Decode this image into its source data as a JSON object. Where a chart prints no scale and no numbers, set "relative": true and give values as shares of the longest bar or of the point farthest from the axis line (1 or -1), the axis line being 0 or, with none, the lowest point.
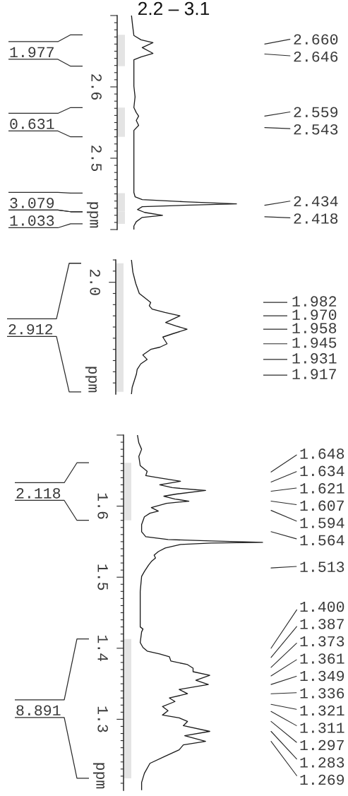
{
  "chart_data": [
    {
      "type": "line",
      "orientation": "horizontal",
      "relative": true,
      "title": "2.2 – 3.1",
      "ylabel": "ppm",
      "ylim": [
        2.4,
        2.7
      ],
      "yticks": [
        {
          "value": 2.4,
          "label": null
        },
        {
          "value": 2.41,
          "label": null
        },
        {
          "value": 2.42,
          "label": null
        },
        {
          "value": 2.43,
          "label": null
        },
        {
          "value": 2.44,
          "label": null
        },
        {
          "value": 2.45,
          "label": null
        },
        {
          "value": 2.46,
          "label": null
        },
        {
          "value": 2.47,
          "label": null
        },
        {
          "value": 2.48,
          "label": null
        },
        {
          "value": 2.49,
          "label": null
        },
        {
          "value": 2.5,
          "label": "2.5"
        },
        {
          "value": 2.51,
          "label": null
        },
        {
          "value": 2.52,
          "label": null
        },
        {
          "value": 2.53,
          "label": null
        },
        {
          "value": 2.54,
          "label": null
        },
        {
          "value": 2.55,
          "label": null
        },
        {
          "value": 2.56,
          "label": null
        },
        {
          "value": 2.57,
          "label": null
        },
        {
          "value": 2.58,
          "label": null
        },
        {
          "value": 2.59,
          "label": null
        },
        {
          "value": 2.6,
          "label": "2.6"
        },
        {
          "value": 2.61,
          "label": null
        },
        {
          "value": 2.62,
          "label": null
        },
        {
          "value": 2.63,
          "label": null
        },
        {
          "value": 2.64,
          "label": null
        },
        {
          "value": 2.65,
          "label": null
        },
        {
          "value": 2.66,
          "label": null
        },
        {
          "value": 2.67,
          "label": null
        },
        {
          "value": 2.68,
          "label": null
        },
        {
          "value": 2.69,
          "label": null
        },
        {
          "value": 2.7,
          "label": null
        }
      ],
      "series": [
        {
          "color": "#1a1a1a",
          "x": [
            2.7,
            2.685,
            2.672,
            2.666,
            2.662,
            2.655,
            2.647,
            2.642,
            2.638,
            2.63,
            2.601,
            2.586,
            2.571,
            2.564,
            2.559,
            2.553,
            2.546,
            2.539,
            2.526,
            2.486,
            2.452,
            2.446,
            2.442,
            2.439,
            2.436,
            2.434,
            2.432,
            2.428,
            2.424,
            2.42,
            2.417,
            2.411,
            2.405,
            2.4
          ],
          "values": [
            0.12,
            0.13,
            0.14,
            0.2,
            0.3,
            0.21,
            0.3,
            0.2,
            0.14,
            0.14,
            0.14,
            0.15,
            0.14,
            0.16,
            0.18,
            0.16,
            0.18,
            0.14,
            0.14,
            0.14,
            0.14,
            0.15,
            0.21,
            0.56,
            1.0,
            0.56,
            0.21,
            0.17,
            0.23,
            0.38,
            0.21,
            0.16,
            0.14,
            0.14
          ]
        }
      ],
      "annotations": [
        "1.977",
        "0.631",
        "3.079",
        "1.033",
        "2.660",
        "2.646",
        "2.559",
        "2.543",
        "2.434",
        "2.418"
      ],
      "bands": [
        {
          "axis": "y",
          "from": 2.629,
          "to": 2.673
        },
        {
          "axis": "y",
          "from": 2.53,
          "to": 2.571
        },
        {
          "axis": "y",
          "from": 2.425,
          "to": 2.451
        },
        {
          "axis": "y",
          "from": 2.408,
          "to": 2.425
        }
      ]
    },
    {
      "type": "line",
      "orientation": "horizontal",
      "relative": true,
      "ylabel": "ppm",
      "ylim": [
        1.9,
        2.02
      ],
      "yticks": [
        {
          "value": 1.91,
          "label": null
        },
        {
          "value": 1.917,
          "label": "1.917"
        },
        {
          "value": 1.92,
          "label": null
        },
        {
          "value": 1.93,
          "label": null
        },
        {
          "value": 1.931,
          "label": "1.931"
        },
        {
          "value": 1.94,
          "label": null
        },
        {
          "value": 1.945,
          "label": "1.945"
        },
        {
          "value": 1.95,
          "label": null
        },
        {
          "value": 1.958,
          "label": "1.958"
        },
        {
          "value": 1.96,
          "label": null
        },
        {
          "value": 1.97,
          "label": "1.970"
        },
        {
          "value": 1.98,
          "label": null
        },
        {
          "value": 1.982,
          "label": "1.982"
        },
        {
          "value": 1.99,
          "label": null
        },
        {
          "value": 2.0,
          "label": null
        },
        {
          "value": 2.01,
          "label": null
        },
        {
          "value": 2.02,
          "label": null
        }
      ],
      "series": [
        {
          "color": "#1a1a1a",
          "x": [
            2.02,
            2.009,
            1.999,
            1.99,
            1.987,
            1.982,
            1.979,
            1.976,
            1.973,
            1.97,
            1.964,
            1.961,
            1.958,
            1.954,
            1.951,
            1.945,
            1.942,
            1.94,
            1.935,
            1.931,
            1.927,
            1.922,
            1.918,
            1.912,
            1.906,
            1.9
          ],
          "values": [
            0.22,
            0.24,
            0.28,
            0.33,
            0.39,
            0.49,
            0.47,
            0.51,
            0.69,
            0.9,
            0.7,
            0.84,
            1.0,
            0.8,
            0.66,
            0.72,
            0.62,
            0.49,
            0.38,
            0.44,
            0.35,
            0.3,
            0.29,
            0.26,
            0.23,
            0.22
          ]
        }
      ],
      "annotations": [
        "2.0",
        "2.912"
      ],
      "bands": [
        {
          "axis": "y",
          "from": 1.902,
          "to": 2.017
        }
      ]
    },
    {
      "type": "line",
      "orientation": "horizontal",
      "relative": true,
      "ylabel": "ppm",
      "ylim": [
        1.2,
        1.7
      ],
      "yticks": [
        {
          "value": 1.21,
          "label": null
        },
        {
          "value": 1.22,
          "label": null
        },
        {
          "value": 1.23,
          "label": null
        },
        {
          "value": 1.24,
          "label": null
        },
        {
          "value": 1.25,
          "label": null
        },
        {
          "value": 1.26,
          "label": null
        },
        {
          "value": 1.27,
          "label": null
        },
        {
          "value": 1.28,
          "label": null
        },
        {
          "value": 1.29,
          "label": null
        },
        {
          "value": 1.3,
          "label": "1.3"
        },
        {
          "value": 1.31,
          "label": null
        },
        {
          "value": 1.32,
          "label": null
        },
        {
          "value": 1.33,
          "label": null
        },
        {
          "value": 1.34,
          "label": null
        },
        {
          "value": 1.35,
          "label": null
        },
        {
          "value": 1.36,
          "label": null
        },
        {
          "value": 1.37,
          "label": null
        },
        {
          "value": 1.38,
          "label": null
        },
        {
          "value": 1.39,
          "label": null
        },
        {
          "value": 1.4,
          "label": "1.4"
        },
        {
          "value": 1.41,
          "label": null
        },
        {
          "value": 1.42,
          "label": null
        },
        {
          "value": 1.43,
          "label": null
        },
        {
          "value": 1.44,
          "label": null
        },
        {
          "value": 1.45,
          "label": null
        },
        {
          "value": 1.46,
          "label": null
        },
        {
          "value": 1.47,
          "label": null
        },
        {
          "value": 1.48,
          "label": null
        },
        {
          "value": 1.49,
          "label": null
        },
        {
          "value": 1.5,
          "label": "1.5"
        },
        {
          "value": 1.51,
          "label": null
        },
        {
          "value": 1.52,
          "label": null
        },
        {
          "value": 1.53,
          "label": null
        },
        {
          "value": 1.54,
          "label": null
        },
        {
          "value": 1.55,
          "label": null
        },
        {
          "value": 1.56,
          "label": null
        },
        {
          "value": 1.57,
          "label": null
        },
        {
          "value": 1.58,
          "label": null
        },
        {
          "value": 1.59,
          "label": null
        },
        {
          "value": 1.6,
          "label": "1.6"
        },
        {
          "value": 1.61,
          "label": null
        },
        {
          "value": 1.62,
          "label": null
        },
        {
          "value": 1.63,
          "label": null
        },
        {
          "value": 1.64,
          "label": null
        },
        {
          "value": 1.65,
          "label": null
        },
        {
          "value": 1.66,
          "label": null
        },
        {
          "value": 1.67,
          "label": null
        },
        {
          "value": 1.68,
          "label": null
        },
        {
          "value": 1.69,
          "label": null
        },
        {
          "value": 1.7,
          "label": null
        }
      ],
      "series": [
        {
          "color": "#1a1a1a",
          "x": [
            1.7,
            1.689,
            1.68,
            1.67,
            1.657,
            1.649,
            1.643,
            1.64,
            1.635,
            1.63,
            1.626,
            1.622,
            1.617,
            1.614,
            1.61,
            1.607,
            1.604,
            1.598,
            1.593,
            1.59,
            1.585,
            1.574,
            1.564,
            1.557,
            1.553,
            1.551,
            1.549,
            1.548,
            1.546,
            1.541,
            1.536,
            1.531,
            1.527,
            1.522,
            1.517,
            1.508,
            1.501,
            1.48,
            1.449,
            1.43,
            1.427,
            1.423,
            1.408,
            1.401,
            1.396,
            1.392,
            1.388,
            1.382,
            1.377,
            1.372,
            1.367,
            1.362,
            1.355,
            1.349,
            1.342,
            1.336,
            1.33,
            1.325,
            1.318,
            1.312,
            1.306,
            1.302,
            1.297,
            1.291,
            1.283,
            1.277,
            1.269,
            1.264,
            1.257,
            1.248,
            1.238,
            1.224,
            1.211,
            1.201
          ],
          "values": [
            0.1,
            0.11,
            0.13,
            0.11,
            0.12,
            0.17,
            0.16,
            0.25,
            0.41,
            0.26,
            0.35,
            0.59,
            0.38,
            0.29,
            0.37,
            0.47,
            0.31,
            0.2,
            0.25,
            0.19,
            0.15,
            0.13,
            0.13,
            0.16,
            0.32,
            0.63,
            1.0,
            0.63,
            0.41,
            0.3,
            0.25,
            0.22,
            0.23,
            0.2,
            0.18,
            0.15,
            0.13,
            0.12,
            0.12,
            0.12,
            0.14,
            0.13,
            0.12,
            0.14,
            0.17,
            0.26,
            0.33,
            0.34,
            0.46,
            0.5,
            0.5,
            0.62,
            0.52,
            0.61,
            0.4,
            0.46,
            0.33,
            0.37,
            0.28,
            0.32,
            0.28,
            0.4,
            0.46,
            0.43,
            0.62,
            0.44,
            0.59,
            0.43,
            0.4,
            0.3,
            0.19,
            0.15,
            0.13,
            0.13
          ]
        }
      ],
      "annotations": [
        "2.118",
        "8.891",
        "1.648",
        "1.634",
        "1.621",
        "1.607",
        "1.594",
        "1.564",
        "1.513",
        "1.400",
        "1.387",
        "1.373",
        "1.361",
        "1.349",
        "1.336",
        "1.321",
        "1.311",
        "1.297",
        "1.283",
        "1.269"
      ],
      "bands": [
        {
          "axis": "y",
          "from": 1.58,
          "to": 1.661
        },
        {
          "axis": "y",
          "from": 1.217,
          "to": 1.413
        }
      ]
    }
  ]
}
